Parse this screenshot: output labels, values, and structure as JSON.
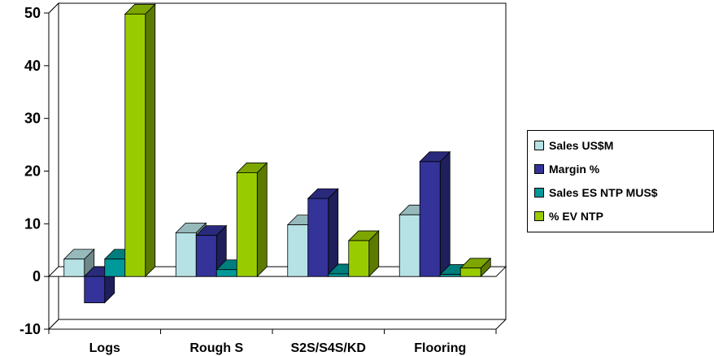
{
  "chart_data": {
    "type": "bar",
    "title": "",
    "xlabel": "",
    "ylabel": "",
    "categories": [
      "Logs",
      "Rough S",
      "S2S/S4S/KD",
      "Flooring"
    ],
    "series": [
      {
        "name": "Sales US$M",
        "values": [
          3.3,
          8.3,
          9.8,
          11.7
        ],
        "color": "#b7e2e5"
      },
      {
        "name": "Margin %",
        "values": [
          -5,
          7.8,
          14.8,
          21.8
        ],
        "color": "#333399"
      },
      {
        "name": "Sales ES NTP MUS$",
        "values": [
          3.3,
          1.3,
          0.5,
          0.4
        ],
        "color": "#009999"
      },
      {
        "name": "% EV NTP",
        "values": [
          49.8,
          19.7,
          6.8,
          1.6
        ],
        "color": "#99cc00"
      }
    ],
    "ylim": [
      -10,
      50
    ],
    "yticks": [
      "-10",
      "0",
      "10",
      "20",
      "30",
      "40",
      "50"
    ],
    "grid": true,
    "legend_position": "right",
    "style": "3d-clustered-column"
  }
}
